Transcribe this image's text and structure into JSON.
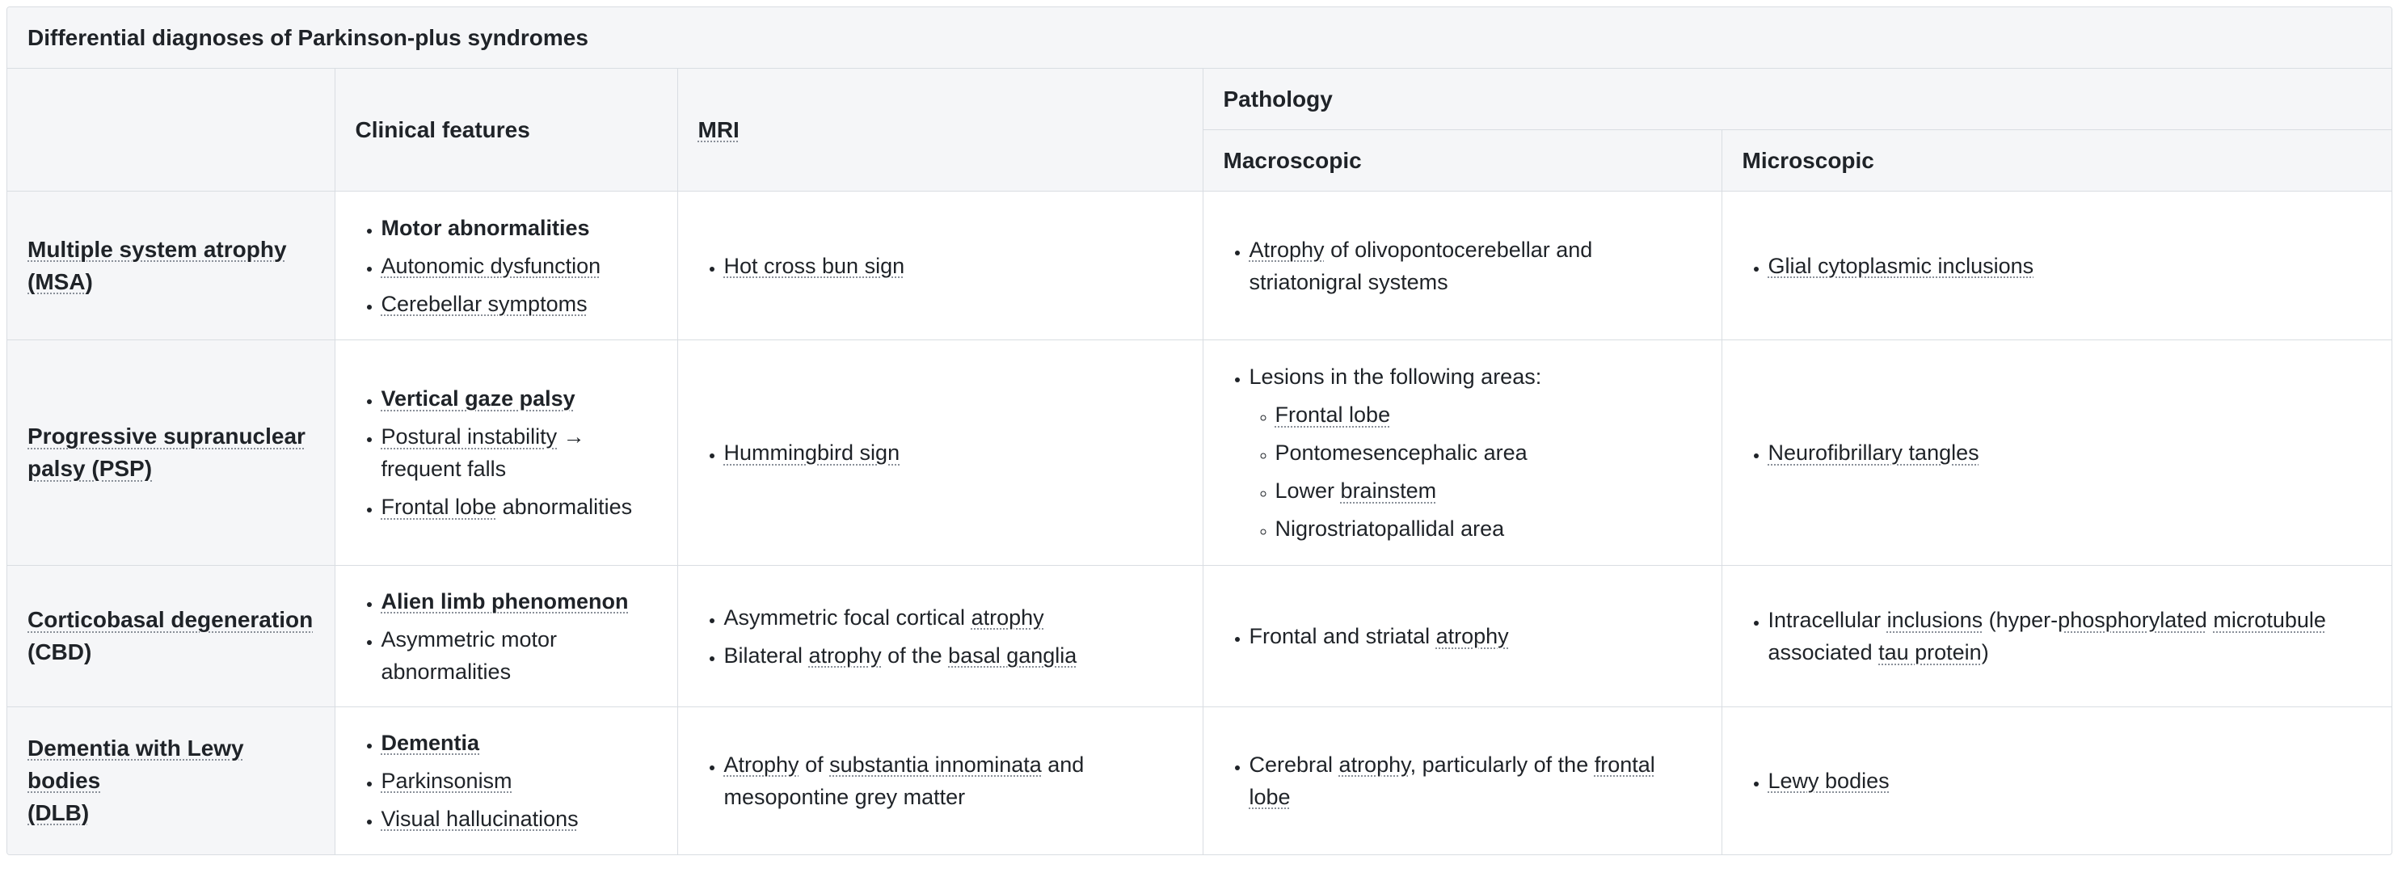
{
  "title": "Differential diagnoses of Parkinson-plus syndromes",
  "header": {
    "clinical": "Clinical features",
    "mri": "MRI",
    "pathology": "Pathology",
    "macro": "Macroscopic",
    "micro": "Microscopic"
  },
  "rows": [
    {
      "name_line1": "Multiple system atrophy",
      "name_line2": "(MSA)",
      "clinical": [
        "Motor abnormalities",
        "Autonomic dysfunction",
        "Cerebellar symptoms"
      ],
      "mri": [
        "Hot cross bun sign"
      ],
      "macro": {
        "a1": "Atrophy",
        "a2": " of olivopontocerebellar and striatonigral systems"
      },
      "micro": [
        "Glial cytoplasmic inclusions"
      ]
    },
    {
      "name_line1": "Progressive supranuclear",
      "name_line2": "palsy (PSP)",
      "clinical": {
        "c1": "Vertical gaze palsy",
        "c2a": "Postural instability",
        "c2b": " → frequent falls",
        "c3a": "Frontal lobe",
        "c3b": " abnormalities"
      },
      "macro": {
        "intro": "Lesions in the following areas:",
        "s1": "Frontal lobe",
        "s2": "Pontomesencephalic area",
        "s3a": "Lower ",
        "s3b": "brainstem",
        "s4": "Nigrostriatopallidal area"
      },
      "mri": [
        "Hummingbird sign"
      ],
      "micro": [
        "Neurofibrillary tangles"
      ]
    },
    {
      "name_line1": "Corticobasal degeneration",
      "name_line2": "(CBD)",
      "clinical": {
        "c1": "Alien limb phenomenon",
        "c2": "Asymmetric motor abnormalities"
      },
      "mri": {
        "m1a": "Asymmetric focal cortical ",
        "m1b": "atrophy",
        "m2a": "Bilateral ",
        "m2b": "atrophy",
        "m2c": " of the ",
        "m2d": "basal ganglia"
      },
      "macro": {
        "a1": "Frontal and striatal ",
        "a2": "atrophy"
      },
      "micro": {
        "i1": "Intracellular ",
        "i2": "inclusions",
        "i3": " (hyper-",
        "i4": "phosphorylated",
        "i5": " ",
        "i6": "microtubule",
        "i7": " associated ",
        "i8": "tau protein",
        "i9": ")"
      }
    },
    {
      "name_line1": "Dementia with Lewy bodies",
      "name_line2": "(DLB)",
      "clinical": [
        "Dementia",
        "Parkinsonism",
        "Visual hallucinations"
      ],
      "mri": {
        "m1": "Atrophy",
        "m2": " of ",
        "m3": "substantia innominata",
        "m4": " and mesopontine grey matter"
      },
      "macro": {
        "a1": "Cerebral ",
        "a2": "atrophy",
        "a3": ", particularly of the ",
        "a4": "frontal lobe"
      },
      "micro": [
        "Lewy bodies"
      ]
    }
  ]
}
